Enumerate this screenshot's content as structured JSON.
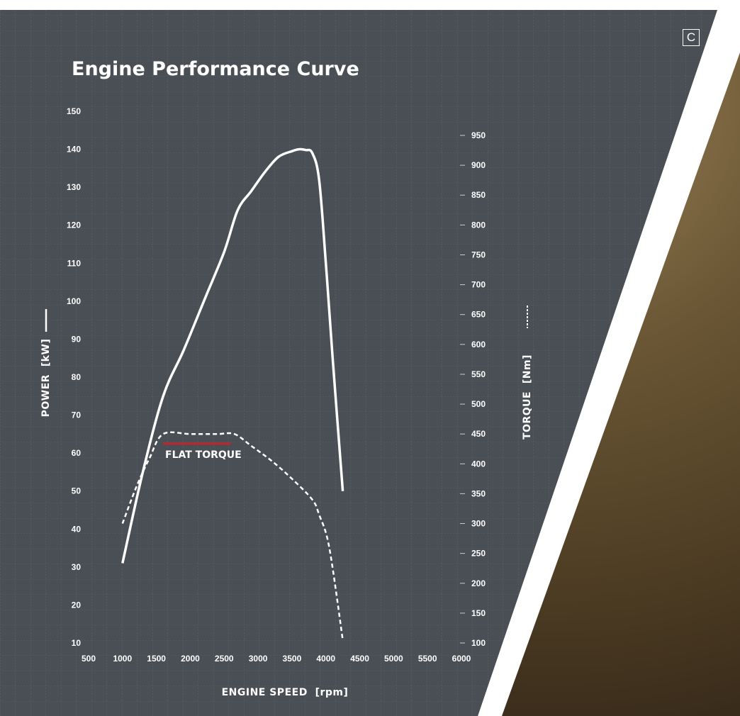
{
  "colors": {
    "panel": "#4a4f55",
    "grid": "#6b7076",
    "curve": "#ffffff",
    "accent": "#c0242c",
    "photo": "#4a3a22"
  },
  "badge": "C",
  "chart_data": {
    "type": "line",
    "title": "Engine Performance Curve",
    "xlabel": "ENGINE SPEED  [rpm]",
    "ylabel_left": "POWER  [kW]",
    "ylabel_right": "TORQUE  [Nm]",
    "xlim": [
      500,
      6000
    ],
    "ylim_left": [
      10,
      150
    ],
    "ylim_right": [
      100,
      950
    ],
    "x_ticks": [
      500,
      1000,
      1500,
      2000,
      2500,
      3000,
      3500,
      4000,
      4500,
      5000,
      5500,
      6000
    ],
    "y_ticks_left": [
      10,
      20,
      30,
      40,
      50,
      60,
      70,
      80,
      90,
      100,
      110,
      120,
      130,
      140,
      150
    ],
    "y_ticks_right": [
      100,
      150,
      200,
      250,
      300,
      350,
      400,
      450,
      500,
      550,
      600,
      650,
      700,
      750,
      800,
      850,
      900,
      950
    ],
    "grid": true,
    "series": [
      {
        "name": "",
        "axis": "left",
        "style": "solid",
        "x": [
          1000,
          1300,
          1600,
          1900,
          2200,
          2500,
          2700,
          2900,
          3100,
          3300,
          3500,
          3600,
          3700,
          3800,
          3900,
          4000,
          4100,
          4250
        ],
        "y": [
          31,
          55,
          75,
          87,
          100,
          113,
          124,
          129,
          134,
          138,
          139.5,
          140,
          139.8,
          139,
          132,
          110,
          85,
          50
        ]
      },
      {
        "name": "",
        "axis": "right",
        "style": "dashed",
        "x": [
          1000,
          1200,
          1400,
          1600,
          2000,
          2400,
          2650,
          2900,
          3200,
          3500,
          3800,
          3900,
          4050,
          4250
        ],
        "y": [
          300,
          360,
          410,
          450,
          450,
          450,
          450,
          430,
          405,
          375,
          340,
          315,
          260,
          105
        ]
      }
    ],
    "annotations": [
      {
        "text": "FLAT TORQUE",
        "x": 1600,
        "x_end": 2600,
        "y": 62.5,
        "axis": "left"
      }
    ]
  }
}
